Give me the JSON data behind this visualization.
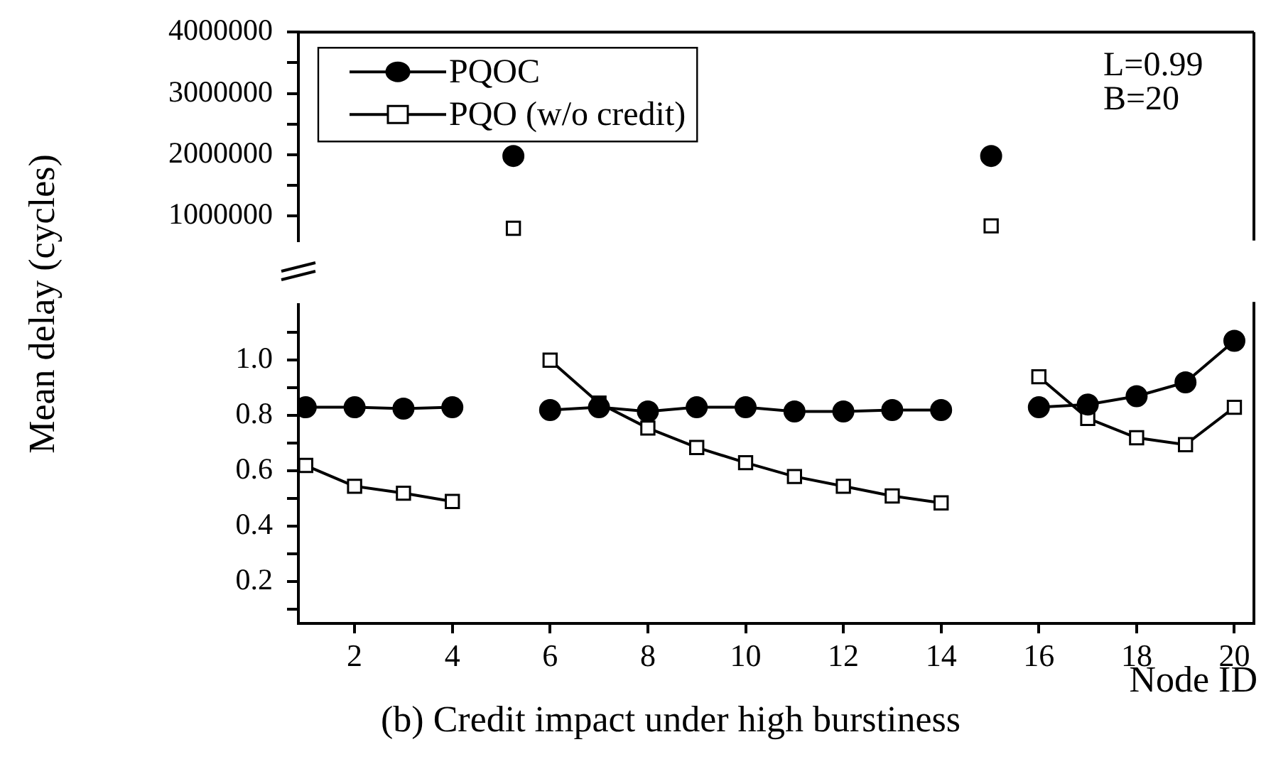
{
  "chart_data": [
    {
      "type": "line",
      "ylabel": "Mean delay (cycles)",
      "legend": "top left",
      "annotations": [
        "L=0.99",
        "B=20"
      ],
      "categories": [
        null,
        null,
        null,
        null,
        null,
        null,
        null,
        null,
        null,
        null,
        null,
        null,
        null,
        null,
        null,
        null,
        null,
        null,
        null,
        null
      ],
      "ylim": [
        600000,
        4000000
      ],
      "yticks": [
        1000000,
        {
          "value": 1500000,
          "label": null
        },
        2000000,
        {
          "value": 2500000,
          "label": null
        },
        3000000,
        {
          "value": 3500000,
          "label": null
        },
        4000000
      ],
      "tick_labels": "y",
      "series": [
        {
          "name": "PQOC",
          "color": "#000000",
          "marker": "circle",
          "values": [
            null,
            null,
            null,
            null,
            1980000,
            null,
            null,
            null,
            null,
            null,
            null,
            null,
            null,
            null,
            1980000,
            null,
            null,
            null,
            null,
            null
          ]
        },
        {
          "name": "PQO (w/o credit)",
          "color": "#000000",
          "marker": "square",
          "values": [
            null,
            null,
            null,
            null,
            800000,
            null,
            null,
            null,
            null,
            null,
            null,
            null,
            null,
            null,
            840000,
            null,
            null,
            null,
            null,
            null
          ]
        }
      ]
    },
    {
      "type": "line",
      "xlabel": "Node ID",
      "annotations": [
        "(b) Credit impact under high burstiness"
      ],
      "x": [
        1,
        2,
        3,
        4,
        5,
        6,
        7,
        8,
        9,
        10,
        11,
        12,
        13,
        14,
        15,
        16,
        17,
        18,
        19,
        20
      ],
      "xlim": [
        0.85,
        20.4
      ],
      "xticks": [
        2,
        4,
        6,
        8,
        10,
        12,
        14,
        16,
        18,
        20
      ],
      "ylim": [
        0.05,
        1.2
      ],
      "yticks": [
        {
          "value": 0.1,
          "label": null
        },
        0.2,
        {
          "value": 0.3,
          "label": null
        },
        0.4,
        {
          "value": 0.5,
          "label": null
        },
        0.6,
        {
          "value": 0.7,
          "label": null
        },
        0.8,
        {
          "value": 0.9,
          "label": null
        },
        {
          "value": 1,
          "label": "1.0"
        },
        {
          "value": 1.1,
          "label": null
        }
      ],
      "tick_labels": "xy",
      "series": [
        {
          "color": "#000000",
          "marker": "circle",
          "values": [
            0.83,
            0.83,
            0.825,
            0.83,
            null,
            0.82,
            0.83,
            0.815,
            0.83,
            0.83,
            0.815,
            0.815,
            0.82,
            0.82,
            null,
            0.83,
            0.84,
            0.87,
            0.92,
            1.07
          ]
        },
        {
          "color": "#000000",
          "marker": "square",
          "values": [
            0.62,
            0.545,
            0.52,
            0.49,
            null,
            1.0,
            0.845,
            0.755,
            0.685,
            0.63,
            0.58,
            0.545,
            0.51,
            0.485,
            null,
            0.94,
            0.79,
            0.72,
            0.695,
            0.83
          ]
        }
      ]
    }
  ]
}
